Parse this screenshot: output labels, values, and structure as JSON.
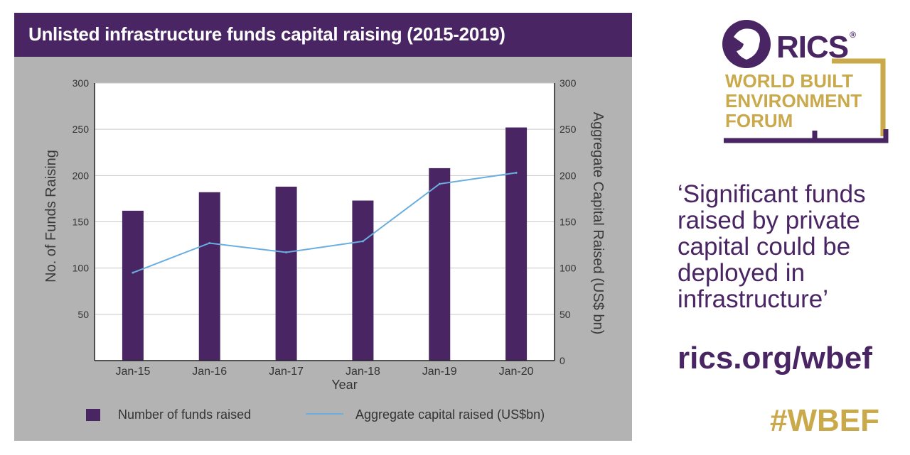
{
  "header": {
    "title": "Unlisted infrastructure funds capital raising (2015-2019)"
  },
  "chart_data": {
    "type": "bar",
    "categories": [
      "Jan-15",
      "Jan-16",
      "Jan-17",
      "Jan-18",
      "Jan-19",
      "Jan-20"
    ],
    "series": [
      {
        "name": "Number of funds raised",
        "kind": "bar",
        "axis": "left",
        "color": "#4a2563",
        "values": [
          162,
          182,
          188,
          173,
          208,
          252
        ]
      },
      {
        "name": "Aggregate capital raised (US$bn)",
        "kind": "line",
        "axis": "right",
        "color": "#6aaee0",
        "values": [
          95,
          127,
          117,
          129,
          191,
          203
        ]
      }
    ],
    "title": "",
    "xlabel": "Year",
    "ylabel": "No. of Funds Raising",
    "y2label": "Aggregate Capital Raised (US$ bn)",
    "ylim": [
      0,
      300
    ],
    "y2lim": [
      0,
      300
    ],
    "yticks": [
      "50",
      "100",
      "150",
      "200",
      "250",
      "300"
    ],
    "y2ticks": [
      "0",
      "50",
      "100",
      "150",
      "200",
      "250",
      "300"
    ],
    "grid": true,
    "legend_position": "bottom"
  },
  "logo": {
    "brand": "RICS",
    "registered": "®",
    "lines": [
      "WORLD BUILT",
      "ENVIRONMENT",
      "FORUM"
    ]
  },
  "sidebar": {
    "quote": "‘Significant funds raised by private capital could be deployed in infrastructure’",
    "url": "rics.org/wbef",
    "hashtag": "#WBEF"
  },
  "colors": {
    "purple": "#4a2563",
    "gold": "#c9a94a",
    "line_blue": "#6aaee0",
    "panel_grey": "#b3b3b3"
  }
}
